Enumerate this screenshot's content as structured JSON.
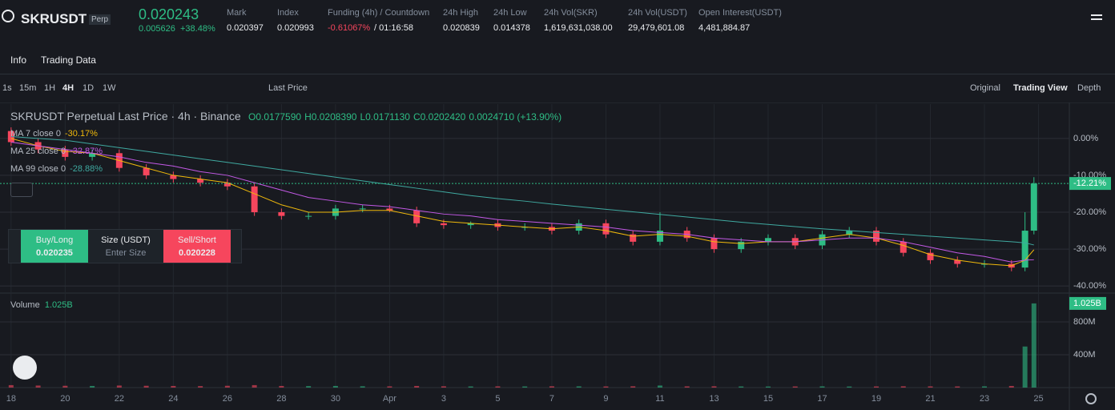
{
  "header": {
    "symbol": "SKRUSDT",
    "badge": "Perp",
    "price": "0.020243",
    "change": "0.005626",
    "change_pct": "+38.48%",
    "stats": [
      {
        "label": "Mark",
        "value": "0.020397"
      },
      {
        "label": "Index",
        "value": "0.020993"
      },
      {
        "label": "Funding (4h) / Countdown",
        "value": "-0.61067%",
        "extra": "/ 01:16:58"
      },
      {
        "label": "24h High",
        "value": "0.020839"
      },
      {
        "label": "24h Low",
        "value": "0.014378"
      },
      {
        "label": "24h Vol(SKR)",
        "value": "1,619,631,038.00"
      },
      {
        "label": "24h Vol(USDT)",
        "value": "29,479,601.08"
      },
      {
        "label": "Open Interest(USDT)",
        "value": "4,481,884.87"
      }
    ]
  },
  "tabs": [
    "Info",
    "Trading Data"
  ],
  "toolbar": {
    "intervals": [
      "1s",
      "15m",
      "1H",
      "4H",
      "1D",
      "1W"
    ],
    "price_type": "Last Price",
    "views": [
      "Original",
      "Trading View",
      "Depth"
    ]
  },
  "legend": {
    "title": "SKRUSDT Perpetual Last Price · 4h · Binance",
    "ohlc": [
      "O0.0177590",
      "H0.0208390",
      "L0.0171130",
      "C0.0202420",
      "0.0024710 (+13.90%)"
    ],
    "ma": [
      {
        "name": "MA 7 close 0",
        "value": "-30.17%"
      },
      {
        "name": "MA 25 close 0",
        "value": "-32.87%"
      },
      {
        "name": "MA 99 close 0",
        "value": "-28.88%"
      }
    ],
    "volume_name": "Volume",
    "volume_value": "1.025B"
  },
  "trade_panel": {
    "buy_label": "Buy/Long",
    "buy_price": "0.020235",
    "size_label": "Size (USDT)",
    "size_placeholder": "Enter Size",
    "sell_label": "Sell/Short",
    "sell_price": "0.020228"
  },
  "chart_data": {
    "type": "candlestick",
    "up_color": "#2ebd85",
    "down_color": "#f6465d",
    "x": [
      0,
      1,
      2,
      3,
      4,
      5,
      6,
      7,
      8,
      9,
      10,
      11,
      12,
      13,
      14,
      15,
      16,
      17,
      18,
      19,
      20,
      21,
      22,
      23,
      24,
      25,
      26,
      27,
      28,
      29,
      30,
      31,
      32,
      33,
      34,
      35,
      36,
      37,
      37.5,
      37.83
    ],
    "xlim": [
      -0.41,
      39.14
    ],
    "xticks": [
      {
        "value": 0,
        "label": "18"
      },
      {
        "value": 2,
        "label": "20"
      },
      {
        "value": 4,
        "label": "22"
      },
      {
        "value": 6,
        "label": "24"
      },
      {
        "value": 8,
        "label": "26"
      },
      {
        "value": 10,
        "label": "28"
      },
      {
        "value": 12,
        "label": "30"
      },
      {
        "value": 14,
        "label": "Apr"
      },
      {
        "value": 16,
        "label": "3"
      },
      {
        "value": 18,
        "label": "5"
      },
      {
        "value": 20,
        "label": "7"
      },
      {
        "value": 22,
        "label": "9"
      },
      {
        "value": 24,
        "label": "11"
      },
      {
        "value": 26,
        "label": "13"
      },
      {
        "value": 28,
        "label": "15"
      },
      {
        "value": 30,
        "label": "17"
      },
      {
        "value": 32,
        "label": "19"
      },
      {
        "value": 34,
        "label": "21"
      },
      {
        "value": 36,
        "label": "23"
      },
      {
        "value": 38,
        "label": "25"
      }
    ],
    "open": [
      2,
      -1,
      -3,
      -5,
      -4,
      -8,
      -10,
      -11,
      -12,
      -13,
      -20,
      -21,
      -21,
      -19,
      -19,
      -19.5,
      -23,
      -23.5,
      -23,
      -24,
      -24,
      -25,
      -23,
      -26,
      -28,
      -25,
      -27,
      -30,
      -28,
      -27,
      -29,
      -26,
      -25,
      -28,
      -31,
      -33,
      -34,
      -34,
      -35,
      -25
    ],
    "high": [
      3,
      0,
      -2,
      -3,
      -3,
      -7,
      -9,
      -10,
      -11,
      -12,
      -19,
      -20,
      -18,
      -18,
      -18,
      -18.5,
      -22,
      -22.5,
      -22,
      -23,
      -23,
      -22,
      -22,
      -25,
      -20,
      -24,
      -26,
      -27,
      -26,
      -26,
      -25,
      -24,
      -24,
      -27,
      -30,
      -32,
      -33,
      -33,
      -20,
      -10.5
    ],
    "low": [
      -2,
      -4,
      -6,
      -6,
      -9,
      -11,
      -12,
      -13,
      -14,
      -21,
      -22,
      -22,
      -22,
      -20,
      -20,
      -24,
      -24.5,
      -24.5,
      -25,
      -25,
      -26,
      -26,
      -27,
      -29,
      -29,
      -28,
      -31,
      -31,
      -29,
      -30,
      -30,
      -27,
      -29,
      -32,
      -34,
      -35,
      -35,
      -36,
      -36,
      -26
    ],
    "close": [
      -1,
      -3,
      -5,
      -4,
      -8,
      -10,
      -11,
      -12,
      -13,
      -20,
      -21,
      -21,
      -19,
      -19,
      -19.5,
      -23,
      -23.5,
      -23,
      -24,
      -24,
      -25,
      -23,
      -26,
      -28,
      -25,
      -27,
      -30,
      -28,
      -27,
      -29,
      -26,
      -25,
      -28,
      -31,
      -33,
      -34,
      -34,
      -35,
      -25,
      -12.21
    ],
    "volume": [
      30000000,
      25000000,
      22000000,
      20000000,
      25000000,
      22000000,
      20000000,
      18000000,
      22000000,
      30000000,
      20000000,
      18000000,
      20000000,
      16000000,
      15000000,
      20000000,
      16000000,
      14000000,
      15000000,
      14000000,
      16000000,
      15000000,
      14000000,
      16000000,
      25000000,
      15000000,
      16000000,
      14000000,
      13000000,
      14000000,
      15000000,
      13000000,
      14000000,
      16000000,
      15000000,
      14000000,
      15000000,
      20000000,
      500000000,
      1025000000
    ],
    "ylim": [
      -41.7,
      9.3
    ],
    "yticks": [
      {
        "value": 0,
        "label": "0.00%"
      },
      {
        "value": -10,
        "label": "-10.00%"
      },
      {
        "value": -20,
        "label": "-20.00%"
      },
      {
        "value": -30,
        "label": "-30.00%"
      },
      {
        "value": -40,
        "label": "-40.00%"
      }
    ],
    "last_price": {
      "value": -12.21,
      "label": "-12.21%"
    },
    "volume_ylim": [
      0,
      1141000000
    ],
    "volume_yticks": [
      {
        "value": 400000000,
        "label": "400M"
      },
      {
        "value": 800000000,
        "label": "800M"
      }
    ],
    "volume_last": {
      "value": 1025000000,
      "label": "1.025B"
    },
    "series": [
      {
        "name": "MA 7",
        "color": "#f0b90b",
        "values": [
          0,
          -2,
          -3.5,
          -4,
          -6,
          -8,
          -10,
          -11,
          -12,
          -15,
          -18,
          -20,
          -20,
          -19.5,
          -19.5,
          -21,
          -22.5,
          -23,
          -23.5,
          -24,
          -24.5,
          -24,
          -25,
          -26.5,
          -26,
          -26.5,
          -28,
          -28.5,
          -28,
          -28,
          -27,
          -26,
          -27,
          -29,
          -31.5,
          -33,
          -34,
          -34.5,
          -33,
          -30.17
        ]
      },
      {
        "name": "MA 25",
        "color": "#c359e6",
        "values": [
          -1,
          -2,
          -3,
          -4,
          -5,
          -6.5,
          -7.5,
          -9,
          -10,
          -12,
          -14,
          -16,
          -17,
          -18,
          -18.5,
          -19.5,
          -20.5,
          -21,
          -22,
          -22.5,
          -23,
          -23.5,
          -24,
          -25,
          -25.5,
          -26,
          -27,
          -27.5,
          -28,
          -28,
          -27.5,
          -27,
          -27,
          -28,
          -29.5,
          -31,
          -32,
          -33.5,
          -33,
          -32.87
        ]
      },
      {
        "name": "MA 99",
        "color": "#3fa9a0",
        "values": [
          0.5,
          0,
          -0.5,
          -1.5,
          -2.5,
          -3.5,
          -4.5,
          -5.5,
          -6.5,
          -7.5,
          -8.5,
          -9.5,
          -10.5,
          -11.5,
          -12.5,
          -13.5,
          -14.5,
          -15.5,
          -16.3,
          -17,
          -17.8,
          -18.5,
          -19.2,
          -19.9,
          -20.6,
          -21.3,
          -22,
          -22.7,
          -23.3,
          -23.9,
          -24.5,
          -25,
          -25.5,
          -26,
          -26.5,
          -27,
          -27.5,
          -28,
          -28.3,
          -28.88
        ]
      }
    ]
  }
}
